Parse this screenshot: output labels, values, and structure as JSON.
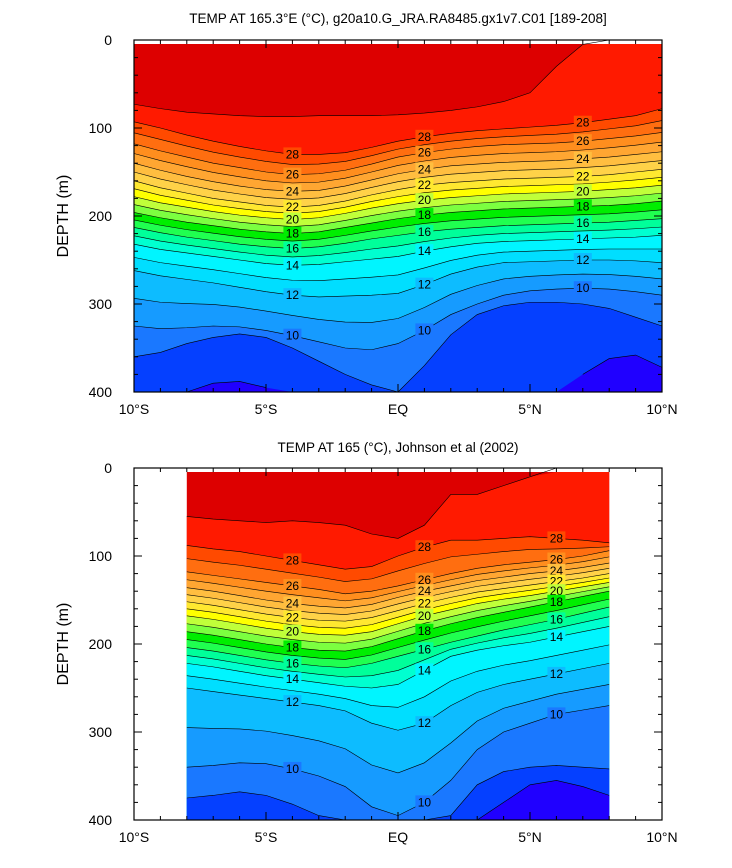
{
  "chart_data": [
    {
      "type": "heatmap",
      "title": "TEMP AT 165.3°E (°C), g20a10.G_JRA.RA8485.gx1v7.C01 [189-208]",
      "ylabel": "DEPTH (m)",
      "xlim": [
        -10,
        10
      ],
      "ylim": [
        0,
        400
      ],
      "x_ticks": [
        -10,
        -5,
        0,
        5,
        10
      ],
      "x_tick_labels": [
        "10°S",
        "5°S",
        "EQ",
        "5°N",
        "10°N"
      ],
      "y_ticks": [
        0,
        100,
        200,
        300,
        400
      ],
      "y_tick_labels": [
        "0",
        "100",
        "200",
        "300",
        "400"
      ],
      "data_x_range": [
        -10,
        10
      ],
      "contour_interval": 1,
      "labeled_contours": [
        28,
        26,
        24,
        22,
        20,
        18,
        16,
        14,
        12,
        10
      ],
      "latitudes": [
        -10,
        -9,
        -8,
        -7,
        -6,
        -5,
        -4,
        -3,
        -2,
        -1,
        0,
        1,
        2,
        3,
        4,
        5,
        6,
        7,
        8,
        9,
        10
      ],
      "isotherm_depths": [
        {
          "temp": 29,
          "depth": [
            73,
            78,
            82,
            84,
            86,
            87,
            87,
            86,
            86,
            86,
            85,
            83,
            80,
            76,
            70,
            60,
            30,
            5,
            0,
            0,
            0
          ]
        },
        {
          "temp": 28,
          "depth": [
            93,
            100,
            108,
            115,
            121,
            126,
            130,
            130,
            128,
            122,
            115,
            110,
            106,
            103,
            101,
            99,
            97,
            94,
            90,
            86,
            78
          ]
        },
        {
          "temp": 26,
          "depth": [
            118,
            126,
            133,
            140,
            145,
            150,
            153,
            152,
            148,
            141,
            133,
            128,
            124,
            121,
            119,
            118,
            117,
            115,
            112,
            109,
            105
          ]
        },
        {
          "temp": 24,
          "depth": [
            140,
            148,
            155,
            161,
            166,
            170,
            172,
            171,
            166,
            159,
            152,
            147,
            143,
            141,
            139,
            138,
            137,
            135,
            133,
            130,
            127
          ]
        },
        {
          "temp": 22,
          "depth": [
            160,
            168,
            174,
            180,
            184,
            188,
            190,
            188,
            183,
            176,
            170,
            165,
            162,
            160,
            158,
            157,
            156,
            155,
            153,
            150,
            147
          ]
        },
        {
          "temp": 20,
          "depth": [
            178,
            185,
            190,
            195,
            199,
            202,
            204,
            202,
            197,
            191,
            186,
            182,
            179,
            177,
            175,
            174,
            173,
            172,
            170,
            168,
            165
          ]
        },
        {
          "temp": 18,
          "depth": [
            196,
            202,
            207,
            211,
            215,
            218,
            220,
            218,
            213,
            208,
            203,
            199,
            196,
            194,
            192,
            191,
            190,
            189,
            188,
            186,
            183
          ]
        },
        {
          "temp": 16,
          "depth": [
            213,
            219,
            224,
            228,
            232,
            235,
            237,
            235,
            231,
            226,
            222,
            218,
            215,
            213,
            211,
            210,
            209,
            208,
            207,
            205,
            203
          ]
        },
        {
          "temp": 14,
          "depth": [
            232,
            238,
            242,
            246,
            250,
            254,
            256,
            255,
            252,
            249,
            246,
            240,
            235,
            231,
            229,
            228,
            227,
            226,
            225,
            224,
            222
          ]
        },
        {
          "temp": 12,
          "depth": [
            262,
            268,
            272,
            276,
            281,
            286,
            290,
            292,
            291,
            290,
            288,
            278,
            266,
            258,
            253,
            252,
            251,
            250,
            250,
            251,
            253
          ]
        },
        {
          "temp": 10,
          "depth": [
            325,
            328,
            327,
            325,
            326,
            330,
            336,
            343,
            350,
            352,
            345,
            330,
            312,
            300,
            290,
            285,
            283,
            282,
            283,
            286,
            290
          ]
        },
        {
          "temp": 9,
          "depth": [
            360,
            355,
            345,
            338,
            334,
            338,
            350,
            365,
            380,
            392,
            400,
            370,
            335,
            312,
            302,
            298,
            298,
            300,
            305,
            315,
            325
          ]
        },
        {
          "temp": 8,
          "depth": [
            null,
            null,
            400,
            390,
            388,
            395,
            null,
            null,
            null,
            null,
            null,
            null,
            null,
            null,
            null,
            null,
            null,
            380,
            362,
            358,
            372
          ]
        }
      ]
    },
    {
      "type": "heatmap",
      "title": "TEMP AT 165 (°C), Johnson et al (2002)",
      "ylabel": "DEPTH (m)",
      "xlim": [
        -10,
        10
      ],
      "ylim": [
        0,
        400
      ],
      "x_ticks": [
        -10,
        -5,
        0,
        5,
        10
      ],
      "x_tick_labels": [
        "10°S",
        "5°S",
        "EQ",
        "5°N",
        "10°N"
      ],
      "y_ticks": [
        0,
        100,
        200,
        300,
        400
      ],
      "y_tick_labels": [
        "0",
        "100",
        "200",
        "300",
        "400"
      ],
      "data_x_range": [
        -8,
        8
      ],
      "contour_interval": 1,
      "labeled_contours": [
        28,
        26,
        24,
        22,
        20,
        18,
        16,
        14,
        12,
        10
      ],
      "latitudes": [
        -8,
        -7,
        -6,
        -5,
        -4,
        -3,
        -2,
        -1,
        0,
        1,
        2,
        3,
        4,
        5,
        6,
        7,
        8
      ],
      "isotherm_depths": [
        {
          "temp": 29,
          "depth": [
            55,
            58,
            60,
            62,
            60,
            62,
            65,
            75,
            80,
            65,
            30,
            30,
            20,
            10,
            0,
            0,
            0
          ]
        },
        {
          "temp": 28,
          "depth": [
            88,
            92,
            95,
            100,
            105,
            110,
            115,
            112,
            100,
            90,
            82,
            82,
            80,
            78,
            80,
            82,
            85
          ]
        },
        {
          "temp": 26,
          "depth": [
            118,
            122,
            126,
            130,
            134,
            138,
            143,
            140,
            134,
            127,
            120,
            114,
            110,
            107,
            104,
            100,
            94
          ]
        },
        {
          "temp": 24,
          "depth": [
            136,
            140,
            145,
            150,
            154,
            157,
            159,
            155,
            147,
            140,
            134,
            128,
            124,
            120,
            117,
            113,
            108
          ]
        },
        {
          "temp": 22,
          "depth": [
            152,
            156,
            161,
            166,
            170,
            173,
            174,
            170,
            162,
            154,
            147,
            141,
            137,
            133,
            129,
            125,
            120
          ]
        },
        {
          "temp": 20,
          "depth": [
            168,
            172,
            177,
            182,
            186,
            189,
            190,
            186,
            177,
            168,
            161,
            154,
            149,
            145,
            140,
            135,
            130
          ]
        },
        {
          "temp": 18,
          "depth": [
            186,
            190,
            195,
            200,
            204,
            207,
            208,
            203,
            194,
            185,
            177,
            170,
            164,
            158,
            152,
            146,
            140
          ]
        },
        {
          "temp": 16,
          "depth": [
            204,
            208,
            213,
            218,
            222,
            225,
            227,
            222,
            214,
            206,
            198,
            191,
            184,
            178,
            172,
            165,
            158
          ]
        },
        {
          "temp": 14,
          "depth": [
            222,
            226,
            231,
            236,
            240,
            244,
            248,
            250,
            246,
            230,
            214,
            207,
            202,
            198,
            192,
            186,
            180
          ]
        },
        {
          "temp": 12,
          "depth": [
            250,
            254,
            258,
            262,
            266,
            270,
            276,
            290,
            298,
            290,
            270,
            255,
            246,
            240,
            234,
            228,
            222
          ]
        },
        {
          "temp": 10,
          "depth": [
            340,
            338,
            335,
            336,
            342,
            350,
            362,
            385,
            395,
            380,
            355,
            320,
            300,
            290,
            280,
            275,
            270
          ]
        },
        {
          "temp": 9,
          "depth": [
            375,
            372,
            368,
            372,
            382,
            395,
            400,
            400,
            400,
            400,
            395,
            360,
            345,
            340,
            338,
            340,
            342
          ]
        },
        {
          "temp": 8,
          "depth": [
            null,
            null,
            null,
            null,
            null,
            null,
            null,
            null,
            null,
            null,
            null,
            400,
            380,
            360,
            355,
            362,
            372
          ]
        }
      ]
    }
  ]
}
